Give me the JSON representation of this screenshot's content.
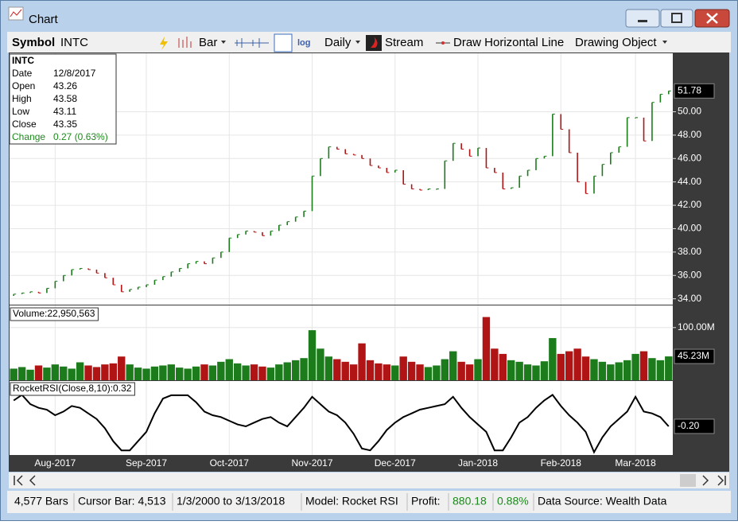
{
  "window": {
    "title": "Chart"
  },
  "toolbar": {
    "symbol_label": "Symbol",
    "symbol": "INTC",
    "bar_style": "Bar",
    "log": "log",
    "scale": "Daily",
    "stream": "Stream",
    "draw_line": "Draw Horizontal Line",
    "drawing_object": "Drawing Object"
  },
  "info_box": {
    "symbol": "INTC",
    "rows": [
      [
        "Date",
        "12/8/2017"
      ],
      [
        "Open",
        "43.26"
      ],
      [
        "High",
        "43.58"
      ],
      [
        "Low",
        "43.11"
      ],
      [
        "Close",
        "43.35"
      ]
    ],
    "change": [
      "Change",
      "0.27 (0.63%)"
    ]
  },
  "chart_data": [
    {
      "type": "price-bar",
      "up_color": "#1c7c1c",
      "down_color": "#b01414",
      "grid": true,
      "categories": [
        null,
        null,
        null,
        null,
        null,
        "Aug-2017",
        null,
        null,
        null,
        null,
        null,
        null,
        null,
        null,
        null,
        null,
        "Sep-2017",
        null,
        null,
        null,
        null,
        null,
        null,
        null,
        null,
        null,
        "Oct-2017",
        null,
        null,
        null,
        null,
        null,
        null,
        null,
        null,
        null,
        "Nov-2017",
        null,
        null,
        null,
        null,
        null,
        null,
        null,
        null,
        null,
        "Dec-2017",
        null,
        null,
        null,
        null,
        null,
        null,
        null,
        null,
        null,
        "Jan-2018",
        null,
        null,
        null,
        null,
        null,
        null,
        null,
        null,
        null,
        "Feb-2018",
        null,
        null,
        null,
        null,
        null,
        null,
        null,
        null,
        "Mar-2018",
        null,
        null,
        null,
        null
      ],
      "values": [
        34.4,
        34.5,
        34.6,
        34.5,
        34.9,
        35.5,
        36.0,
        36.5,
        36.6,
        36.5,
        36.2,
        35.8,
        35.2,
        34.6,
        34.8,
        35.0,
        35.2,
        35.6,
        35.9,
        36.3,
        36.6,
        37.0,
        37.2,
        37.0,
        37.5,
        38.0,
        39.2,
        39.5,
        39.8,
        39.7,
        39.4,
        39.8,
        40.3,
        40.6,
        41.0,
        41.5,
        44.5,
        46.0,
        47.0,
        46.8,
        46.4,
        46.3,
        46.0,
        45.4,
        45.2,
        44.8,
        45.0,
        43.8,
        43.4,
        43.3,
        43.4,
        43.4,
        45.8,
        47.3,
        46.8,
        46.2,
        46.9,
        45.2,
        44.8,
        43.4,
        43.5,
        44.5,
        45.0,
        46.0,
        46.2,
        49.8,
        48.5,
        46.5,
        44.0,
        43.0,
        44.5,
        45.5,
        46.5,
        47.0,
        49.5,
        49.5,
        47.5,
        50.8,
        51.5,
        51.78
      ],
      "ylim": [
        33.5,
        55
      ],
      "yticks": [
        {
          "value": 34,
          "label": "34.00"
        },
        {
          "value": 36,
          "label": "36.00"
        },
        {
          "value": 38,
          "label": "38.00"
        },
        {
          "value": 40,
          "label": "40.00"
        },
        {
          "value": 42,
          "label": "42.00"
        },
        {
          "value": 44,
          "label": "44.00"
        },
        {
          "value": 46,
          "label": "46.00"
        },
        {
          "value": 48,
          "label": "48.00"
        },
        {
          "value": 50,
          "label": "50.00"
        }
      ]
    },
    {
      "type": "volume-bar",
      "title": "Volume:22,950,563",
      "values": [
        22,
        25,
        20,
        28,
        24,
        30,
        26,
        22,
        34,
        28,
        25,
        30,
        32,
        45,
        30,
        24,
        22,
        26,
        28,
        30,
        24,
        22,
        26,
        30,
        28,
        35,
        40,
        32,
        28,
        30,
        26,
        24,
        30,
        34,
        38,
        42,
        95,
        60,
        45,
        40,
        35,
        30,
        70,
        38,
        32,
        30,
        28,
        45,
        35,
        30,
        25,
        28,
        40,
        55,
        35,
        30,
        40,
        120,
        60,
        50,
        38,
        35,
        30,
        28,
        36,
        80,
        50,
        55,
        60,
        45,
        40,
        35,
        30,
        34,
        38,
        50,
        55,
        42,
        38,
        45.23
      ],
      "last_label": "45.23M",
      "ylim": [
        0,
        142
      ],
      "yticks": [
        {
          "value": 100,
          "label": "100.00M"
        }
      ]
    },
    {
      "type": "line",
      "title": "RocketRSI(Close,8,10):0.32",
      "color": "#000000",
      "values": [
        1.2,
        1.5,
        1.0,
        0.8,
        0.7,
        0.4,
        0.6,
        0.9,
        0.8,
        0.5,
        0.2,
        -0.3,
        -1.0,
        -1.5,
        -1.5,
        -1.0,
        -0.5,
        0.5,
        1.3,
        1.48,
        1.48,
        1.48,
        1.1,
        0.6,
        0.4,
        0.3,
        0.1,
        -0.1,
        -0.2,
        0.0,
        0.2,
        0.3,
        0.0,
        -0.2,
        0.3,
        0.8,
        1.4,
        1.0,
        0.6,
        0.4,
        0.0,
        -0.6,
        -1.4,
        -1.5,
        -1.0,
        -0.4,
        0.0,
        0.3,
        0.5,
        0.7,
        0.8,
        0.9,
        1.0,
        1.4,
        0.8,
        0.3,
        -0.1,
        -0.5,
        -1.5,
        -1.5,
        -0.8,
        0.0,
        0.3,
        0.8,
        1.2,
        1.5,
        0.9,
        0.4,
        0.0,
        -0.5,
        -1.6,
        -0.8,
        -0.2,
        0.2,
        0.6,
        1.4,
        0.6,
        0.5,
        0.3,
        -0.2
      ],
      "last_label": "-0.20",
      "ylim": [
        -1.75,
        2.25
      ]
    }
  ],
  "status_bar": [
    "4,577 Bars",
    "Cursor Bar: 4,513",
    "1/3/2000 to 3/13/2018",
    "Model: Rocket RSI",
    "Profit:",
    "880.18",
    "0.88%",
    "Data Source: Wealth Data"
  ]
}
